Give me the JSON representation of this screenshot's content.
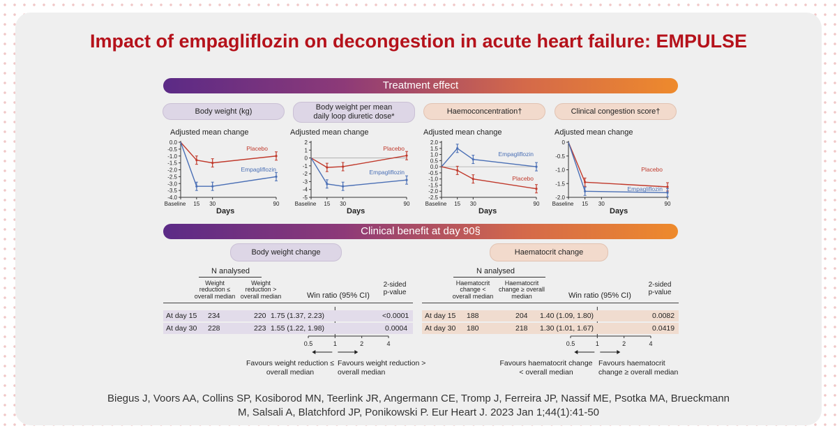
{
  "title": "Impact of empagliflozin on decongestion in acute heart failure: EMPULSE",
  "sections": {
    "treatment_effect": "Treatment effect",
    "clinical_benefit": "Clinical benefit at day 90§"
  },
  "panels": [
    {
      "pill": "Body weight (kg)",
      "ylabel": "Adjusted mean change",
      "xlabel": "Days"
    },
    {
      "pill": "Body weight per mean daily loop diuretic dose*",
      "ylabel": "Adjusted mean change",
      "xlabel": "Days"
    },
    {
      "pill": "Haemoconcentration†",
      "ylabel": "Adjusted mean change",
      "xlabel": "Days"
    },
    {
      "pill": "Clinical congestion score†",
      "ylabel": "Adjusted mean change",
      "xlabel": "Days"
    }
  ],
  "chart_data": [
    {
      "type": "line",
      "title": "Body weight (kg)",
      "ylabel": "Adjusted mean change",
      "xlabel": "Days",
      "x": [
        "Baseline",
        "15",
        "30",
        "90"
      ],
      "x_values": [
        0,
        15,
        30,
        90
      ],
      "ylim": [
        -4.0,
        0.0
      ],
      "yticks": [
        "0.0",
        "-0.5",
        "-1.0",
        "-1.5",
        "-2.0",
        "-2.5",
        "-3.0",
        "-3.5",
        "-4.0"
      ],
      "series": [
        {
          "name": "Placebo",
          "color": "#c0392b",
          "values": [
            0,
            -1.3,
            -1.5,
            -1.0
          ]
        },
        {
          "name": "Empagliflozin",
          "color": "#4a6fb5",
          "values": [
            0,
            -3.2,
            -3.2,
            -2.5
          ]
        }
      ]
    },
    {
      "type": "line",
      "title": "Body weight per mean daily loop diuretic dose*",
      "ylabel": "Adjusted mean change",
      "xlabel": "Days",
      "x": [
        "Baseline",
        "15",
        "30",
        "90"
      ],
      "x_values": [
        0,
        15,
        30,
        90
      ],
      "ylim": [
        -5,
        2
      ],
      "yticks": [
        "2",
        "1",
        "0",
        "-1",
        "-2",
        "-3",
        "-4",
        "-5"
      ],
      "series": [
        {
          "name": "Placebo",
          "color": "#c0392b",
          "values": [
            0,
            -1.2,
            -1.1,
            0.3
          ]
        },
        {
          "name": "Empagliflozin",
          "color": "#4a6fb5",
          "values": [
            0,
            -3.3,
            -3.6,
            -2.8
          ]
        }
      ]
    },
    {
      "type": "line",
      "title": "Haemoconcentration†",
      "ylabel": "Adjusted mean change",
      "xlabel": "Days",
      "x": [
        "Baseline",
        "15",
        "30",
        "90"
      ],
      "x_values": [
        0,
        15,
        30,
        90
      ],
      "ylim": [
        -2.5,
        2.0
      ],
      "yticks": [
        "2.0",
        "1.5",
        "1.0",
        "0.5",
        "0.0",
        "-0.5",
        "-1.0",
        "-1.5",
        "-2.0",
        "-2.5"
      ],
      "series": [
        {
          "name": "Empagliflozin",
          "color": "#4a6fb5",
          "values": [
            0,
            1.5,
            0.6,
            0
          ]
        },
        {
          "name": "Placebo",
          "color": "#c0392b",
          "values": [
            0,
            -0.3,
            -1.0,
            -1.8
          ]
        }
      ]
    },
    {
      "type": "line",
      "title": "Clinical congestion score†",
      "ylabel": "Adjusted mean change",
      "xlabel": "Days",
      "x": [
        "Baseline",
        "15",
        "30",
        "90"
      ],
      "x_values": [
        0,
        15,
        30,
        90
      ],
      "ylim": [
        -2.0,
        0.0
      ],
      "yticks": [
        "0",
        "-0.5",
        "-1.0",
        "-1.5",
        "-2.0"
      ],
      "series": [
        {
          "name": "Placebo",
          "color": "#c0392b",
          "values": [
            0,
            -1.45,
            null,
            -1.62
          ]
        },
        {
          "name": "Empagliflozin",
          "color": "#4a6fb5",
          "values": [
            0,
            -1.78,
            null,
            -1.83
          ]
        }
      ]
    },
    {
      "type": "table",
      "title": "Body weight change",
      "n_analysed": "N analysed",
      "columns": [
        "Weight reduction ≤ overall median",
        "Weight reduction > overall median",
        "Win ratio (95% CI)",
        "2-sided p-value"
      ],
      "rows": [
        {
          "label": "At day 15",
          "n1": "234",
          "n2": "220",
          "ratio": "1.75 (1.37, 2.23)",
          "p": "<0.0001",
          "est": 1.75,
          "lo": 1.37,
          "hi": 2.23
        },
        {
          "label": "At day 30",
          "n1": "228",
          "n2": "223",
          "ratio": "1.55 (1.22, 1.98)",
          "p": "0.0004",
          "est": 1.55,
          "lo": 1.22,
          "hi": 1.98
        }
      ],
      "axis_ticks": [
        "0.5",
        "1",
        "2",
        "4"
      ],
      "favours_left": "Favours weight reduction ≤ overall median",
      "favours_right": "Favours weight reduction > overall median"
    },
    {
      "type": "table",
      "title": "Haematocrit change",
      "n_analysed": "N analysed",
      "columns": [
        "Haematocrit change < overall median",
        "Haematocrit change ≥ overall median",
        "Win ratio (95% CI)",
        "2-sided p-value"
      ],
      "rows": [
        {
          "label": "At day 15",
          "n1": "188",
          "n2": "204",
          "ratio": "1.40 (1.09, 1.80)",
          "p": "0.0082",
          "est": 1.4,
          "lo": 1.09,
          "hi": 1.8
        },
        {
          "label": "At day 30",
          "n1": "180",
          "n2": "218",
          "ratio": "1.30 (1.01, 1.67)",
          "p": "0.0419",
          "est": 1.3,
          "lo": 1.01,
          "hi": 1.67
        }
      ],
      "axis_ticks": [
        "0.5",
        "1",
        "2",
        "4"
      ],
      "favours_left": "Favours haematocrit change < overall median",
      "favours_right": "Favours haematocrit change ≥ overall median"
    }
  ],
  "citation": {
    "line1": "Biegus J, Voors AA, Collins SP, Kosiborod MN, Teerlink JR, Angermann CE, Tromp J, Ferreira JP, Nassif ME, Psotka MA, Brueckmann",
    "line2": "M, Salsali A, Blatchford JP, Ponikowski P. Eur Heart J. 2023 Jan 1;44(1):41-50"
  }
}
